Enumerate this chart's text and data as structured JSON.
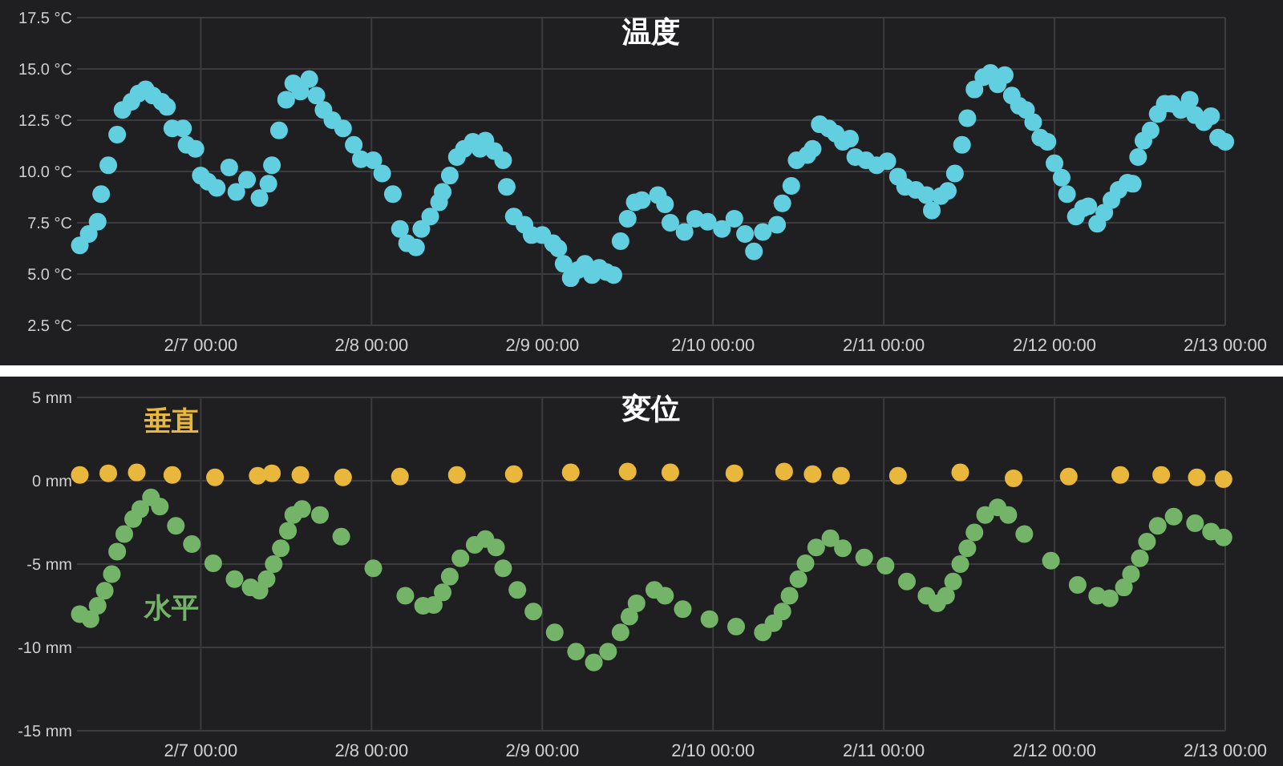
{
  "chart_data": [
    {
      "type": "scatter",
      "title": "温度",
      "marker": "circle",
      "grid": true,
      "xlim": [
        "--02-06T06:36",
        "--02-13T00:00"
      ],
      "xticks": [
        {
          "value": "--02-07T00:00",
          "label": "2/7 00:00"
        },
        {
          "value": "--02-08T00:00",
          "label": "2/8 00:00"
        },
        {
          "value": "--02-09T00:00",
          "label": "2/9 00:00"
        },
        {
          "value": "--02-10T00:00",
          "label": "2/10 00:00"
        },
        {
          "value": "--02-11T00:00",
          "label": "2/11 00:00"
        },
        {
          "value": "--02-12T00:00",
          "label": "2/12 00:00"
        },
        {
          "value": "--02-13T00:00",
          "label": "2/13 00:00"
        }
      ],
      "ylim": [
        2.5,
        17.5
      ],
      "yticks": [
        {
          "value": 2.5,
          "label": "2.5 °C"
        },
        {
          "value": 5,
          "label": "5.0 °C"
        },
        {
          "value": 7.5,
          "label": "7.5 °C"
        },
        {
          "value": 10,
          "label": "10.0 °C"
        },
        {
          "value": 12.5,
          "label": "12.5 °C"
        },
        {
          "value": 15,
          "label": "15.0 °C"
        },
        {
          "value": 17.5,
          "label": "17.5 °C"
        }
      ],
      "series": [
        {
          "color": "#62cfe0",
          "x": [
            "--02-06T07:00",
            "--02-06T08:15",
            "--02-06T09:30",
            "--02-06T10:00",
            "--02-06T11:00",
            "--02-06T12:15",
            "--02-06T13:00",
            "--02-06T14:15",
            "--02-06T15:15",
            "--02-06T16:15",
            "--02-06T17:15",
            "--02-06T18:30",
            "--02-06T19:15",
            "--02-06T20:00",
            "--02-06T21:30",
            "--02-06T22:00",
            "--02-06T23:15",
            "--02-07T00:00",
            "--02-07T01:00",
            "--02-07T02:15",
            "--02-07T04:00",
            "--02-07T05:00",
            "--02-07T06:30",
            "--02-07T08:15",
            "--02-07T09:30",
            "--02-07T10:00",
            "--02-07T11:00",
            "--02-07T12:00",
            "--02-07T13:00",
            "--02-07T14:00",
            "--02-07T15:15",
            "--02-07T16:15",
            "--02-07T17:15",
            "--02-07T18:30",
            "--02-07T20:00",
            "--02-07T21:30",
            "--02-07T22:30",
            "--02-08T00:15",
            "--02-08T01:30",
            "--02-08T03:00",
            "--02-08T04:00",
            "--02-08T05:00",
            "--02-08T06:15",
            "--02-08T07:00",
            "--02-08T08:15",
            "--02-08T09:30",
            "--02-08T10:00",
            "--02-08T11:00",
            "--02-08T12:00",
            "--02-08T13:00",
            "--02-08T14:15",
            "--02-08T15:15",
            "--02-08T16:00",
            "--02-08T17:15",
            "--02-08T18:30",
            "--02-08T19:00",
            "--02-08T20:00",
            "--02-08T21:30",
            "--02-08T22:30",
            "--02-09T00:00",
            "--02-09T01:30",
            "--02-09T02:15",
            "--02-09T03:00",
            "--02-09T04:00",
            "--02-09T05:00",
            "--02-09T06:00",
            "--02-09T07:00",
            "--02-09T08:00",
            "--02-09T09:00",
            "--02-09T10:00",
            "--02-09T11:00",
            "--02-09T12:00",
            "--02-09T13:00",
            "--02-09T14:00",
            "--02-09T16:15",
            "--02-09T17:15",
            "--02-09T18:00",
            "--02-09T20:00",
            "--02-09T21:30",
            "--02-09T23:15",
            "--02-10T01:15",
            "--02-10T03:00",
            "--02-10T04:30",
            "--02-10T05:45",
            "--02-10T07:00",
            "--02-10T09:00",
            "--02-10T09:45",
            "--02-10T11:00",
            "--02-10T11:45",
            "--02-10T13:15",
            "--02-10T14:00",
            "--02-10T15:00",
            "--02-10T16:15",
            "--02-10T17:15",
            "--02-10T18:15",
            "--02-10T19:15",
            "--02-10T20:00",
            "--02-10T21:30",
            "--02-10T23:00",
            "--02-11T00:30",
            "--02-11T02:00",
            "--02-11T03:00",
            "--02-11T04:30",
            "--02-11T06:00",
            "--02-11T06:45",
            "--02-11T08:00",
            "--02-11T09:00",
            "--02-11T10:00",
            "--02-11T11:00",
            "--02-11T11:45",
            "--02-11T12:45",
            "--02-11T14:00",
            "--02-11T15:00",
            "--02-11T16:00",
            "--02-11T17:00",
            "--02-11T18:00",
            "--02-11T19:00",
            "--02-11T20:00",
            "--02-11T21:00",
            "--02-11T22:00",
            "--02-11T23:00",
            "--02-12T00:00",
            "--02-12T01:00",
            "--02-12T01:45",
            "--02-12T03:00",
            "--02-12T04:00",
            "--02-12T04:45",
            "--02-12T06:00",
            "--02-12T07:00",
            "--02-12T08:00",
            "--02-12T09:00",
            "--02-12T10:15",
            "--02-12T11:00",
            "--02-12T11:45",
            "--02-12T12:30",
            "--02-12T13:30",
            "--02-12T14:30",
            "--02-12T15:30",
            "--02-12T16:30",
            "--02-12T17:45",
            "--02-12T19:00",
            "--02-12T19:45",
            "--02-12T21:00",
            "--02-12T22:00",
            "--02-12T23:00",
            "--02-13T00:00"
          ],
          "values": [
            6.4,
            6.95,
            7.55,
            8.9,
            10.3,
            11.8,
            13.0,
            13.4,
            13.8,
            14.0,
            13.7,
            13.4,
            13.15,
            12.1,
            12.1,
            11.3,
            11.1,
            9.8,
            9.5,
            9.2,
            10.2,
            9.0,
            9.6,
            8.7,
            9.4,
            10.3,
            12.0,
            13.5,
            14.3,
            13.9,
            14.5,
            13.7,
            13.0,
            12.5,
            12.1,
            11.3,
            10.6,
            10.55,
            9.9,
            8.9,
            7.2,
            6.5,
            6.3,
            7.2,
            7.8,
            8.5,
            9.0,
            9.8,
            10.7,
            11.1,
            11.45,
            11.1,
            11.5,
            11.0,
            10.55,
            9.25,
            7.8,
            7.4,
            6.9,
            6.9,
            6.5,
            6.25,
            5.5,
            4.8,
            5.2,
            5.5,
            4.95,
            5.3,
            5.1,
            4.95,
            6.6,
            7.7,
            8.5,
            8.6,
            8.85,
            8.4,
            7.5,
            7.05,
            7.7,
            7.55,
            7.2,
            7.7,
            6.95,
            6.1,
            7.05,
            7.4,
            8.45,
            9.3,
            10.55,
            10.8,
            11.1,
            12.3,
            12.1,
            11.85,
            11.45,
            11.6,
            10.7,
            10.55,
            10.3,
            10.5,
            9.75,
            9.25,
            9.1,
            8.85,
            8.1,
            8.8,
            9.05,
            9.9,
            11.3,
            12.6,
            14.0,
            14.6,
            14.8,
            14.25,
            14.7,
            13.7,
            13.2,
            13.0,
            12.4,
            11.65,
            11.45,
            10.4,
            9.7,
            8.9,
            7.8,
            8.2,
            8.3,
            7.45,
            8.0,
            8.6,
            9.1,
            9.45,
            9.4,
            10.7,
            11.5,
            12.0,
            12.8,
            13.3,
            13.3,
            13.0,
            13.5,
            12.75,
            12.4,
            12.7,
            11.65,
            11.45
          ]
        }
      ]
    },
    {
      "type": "scatter",
      "title": "変位",
      "marker": "circle",
      "grid": true,
      "xlim": [
        "--02-06T06:36",
        "--02-13T00:00"
      ],
      "xticks": [
        {
          "value": "--02-07T00:00",
          "label": "2/7 00:00"
        },
        {
          "value": "--02-08T00:00",
          "label": "2/8 00:00"
        },
        {
          "value": "--02-09T00:00",
          "label": "2/9 00:00"
        },
        {
          "value": "--02-10T00:00",
          "label": "2/10 00:00"
        },
        {
          "value": "--02-11T00:00",
          "label": "2/11 00:00"
        },
        {
          "value": "--02-12T00:00",
          "label": "2/12 00:00"
        },
        {
          "value": "--02-13T00:00",
          "label": "2/13 00:00"
        }
      ],
      "ylim": [
        -15,
        5
      ],
      "yticks": [
        {
          "value": -15,
          "label": "-15 mm"
        },
        {
          "value": -10,
          "label": "-10 mm"
        },
        {
          "value": -5,
          "label": "-5 mm"
        },
        {
          "value": 0,
          "label": "0 mm"
        },
        {
          "value": 5,
          "label": "5 mm"
        }
      ],
      "series": [
        {
          "name": "垂直",
          "color": "#e9b73b",
          "x": [
            "--02-06T07:00",
            "--02-06T11:00",
            "--02-06T15:00",
            "--02-06T20:00",
            "--02-07T02:00",
            "--02-07T08:00",
            "--02-07T10:00",
            "--02-07T14:00",
            "--02-07T20:00",
            "--02-08T04:00",
            "--02-08T12:00",
            "--02-08T20:00",
            "--02-09T04:00",
            "--02-09T12:00",
            "--02-09T18:00",
            "--02-10T03:00",
            "--02-10T10:00",
            "--02-10T14:00",
            "--02-10T18:00",
            "--02-11T02:00",
            "--02-11T10:45",
            "--02-11T18:15",
            "--02-12T02:00",
            "--02-12T09:15",
            "--02-12T15:00",
            "--02-12T20:00",
            "--02-12T23:45"
          ],
          "values": [
            0.35,
            0.45,
            0.5,
            0.35,
            0.2,
            0.3,
            0.45,
            0.35,
            0.2,
            0.25,
            0.35,
            0.4,
            0.5,
            0.55,
            0.5,
            0.45,
            0.55,
            0.4,
            0.3,
            0.3,
            0.5,
            0.15,
            0.25,
            0.35,
            0.35,
            0.2,
            0.1
          ]
        },
        {
          "name": "水平",
          "color": "#74b468",
          "x": [
            "--02-06T07:00",
            "--02-06T08:30",
            "--02-06T09:30",
            "--02-06T10:30",
            "--02-06T11:30",
            "--02-06T12:15",
            "--02-06T13:15",
            "--02-06T14:30",
            "--02-06T15:30",
            "--02-06T17:00",
            "--02-06T18:15",
            "--02-06T20:30",
            "--02-06T22:45",
            "--02-07T01:45",
            "--02-07T04:45",
            "--02-07T07:00",
            "--02-07T08:15",
            "--02-07T09:15",
            "--02-07T10:15",
            "--02-07T11:15",
            "--02-07T12:15",
            "--02-07T13:00",
            "--02-07T14:15",
            "--02-07T16:45",
            "--02-07T19:45",
            "--02-08T00:15",
            "--02-08T04:45",
            "--02-08T07:15",
            "--02-08T08:45",
            "--02-08T10:00",
            "--02-08T11:00",
            "--02-08T12:30",
            "--02-08T14:30",
            "--02-08T16:00",
            "--02-08T17:30",
            "--02-08T18:30",
            "--02-08T20:30",
            "--02-08T22:45",
            "--02-09T01:45",
            "--02-09T04:45",
            "--02-09T07:15",
            "--02-09T09:15",
            "--02-09T11:00",
            "--02-09T12:15",
            "--02-09T13:15",
            "--02-09T15:45",
            "--02-09T17:15",
            "--02-09T19:45",
            "--02-09T23:30",
            "--02-10T03:15",
            "--02-10T07:00",
            "--02-10T08:30",
            "--02-10T09:45",
            "--02-10T10:45",
            "--02-10T12:00",
            "--02-10T13:00",
            "--02-10T14:30",
            "--02-10T16:30",
            "--02-10T18:15",
            "--02-10T21:15",
            "--02-11T00:15",
            "--02-11T03:15",
            "--02-11T06:00",
            "--02-11T07:30",
            "--02-11T08:45",
            "--02-11T09:45",
            "--02-11T10:45",
            "--02-11T11:45",
            "--02-11T12:45",
            "--02-11T14:15",
            "--02-11T16:00",
            "--02-11T17:30",
            "--02-11T19:45",
            "--02-11T23:30",
            "--02-12T03:15",
            "--02-12T06:00",
            "--02-12T07:45",
            "--02-12T09:45",
            "--02-12T10:45",
            "--02-12T12:00",
            "--02-12T13:00",
            "--02-12T14:30",
            "--02-12T16:45",
            "--02-12T19:45",
            "--02-12T22:00",
            "--02-12T23:45"
          ],
          "values": [
            -8.0,
            -8.3,
            -7.5,
            -6.6,
            -5.6,
            -4.25,
            -3.2,
            -2.3,
            -1.7,
            -1.0,
            -1.55,
            -2.7,
            -3.8,
            -4.95,
            -5.9,
            -6.4,
            -6.6,
            -5.9,
            -5.0,
            -4.05,
            -3.0,
            -2.05,
            -1.7,
            -2.05,
            -3.35,
            -5.25,
            -6.9,
            -7.5,
            -7.45,
            -6.7,
            -5.75,
            -4.65,
            -3.85,
            -3.5,
            -4.0,
            -5.25,
            -6.55,
            -7.85,
            -9.1,
            -10.25,
            -10.9,
            -10.25,
            -9.1,
            -8.15,
            -7.35,
            -6.55,
            -6.9,
            -7.7,
            -8.3,
            -8.75,
            -9.1,
            -8.55,
            -7.85,
            -6.9,
            -5.9,
            -4.95,
            -4.0,
            -3.45,
            -4.05,
            -4.6,
            -5.1,
            -6.05,
            -6.9,
            -7.35,
            -6.9,
            -6.05,
            -5.0,
            -4.05,
            -3.1,
            -2.05,
            -1.6,
            -2.05,
            -3.2,
            -4.8,
            -6.25,
            -6.9,
            -7.05,
            -6.4,
            -5.6,
            -4.65,
            -3.65,
            -2.7,
            -2.15,
            -2.55,
            -3.05,
            -3.4
          ]
        }
      ]
    }
  ]
}
